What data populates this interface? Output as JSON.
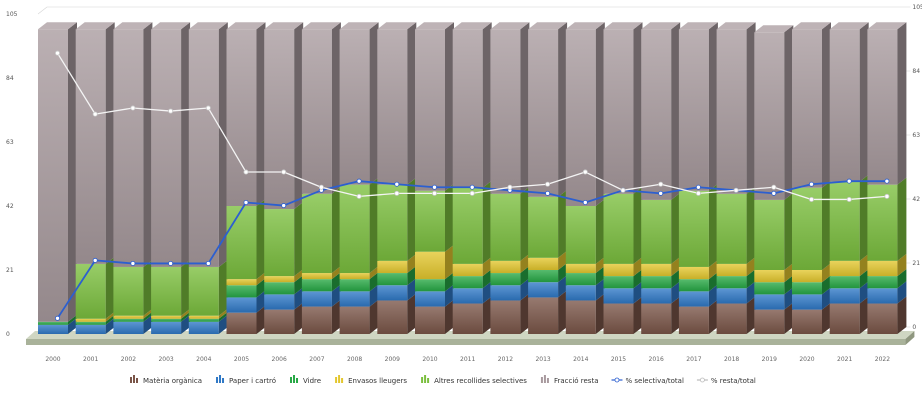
{
  "chart_data": {
    "type": "bar",
    "stacked": true,
    "three_d": true,
    "x": [
      "2000",
      "2001",
      "2002",
      "2003",
      "2004",
      "2005",
      "2006",
      "2007",
      "2008",
      "2009",
      "2010",
      "2011",
      "2012",
      "2013",
      "2014",
      "2015",
      "2016",
      "2017",
      "2018",
      "2019",
      "2020",
      "2021",
      "2022"
    ],
    "y_ticks": [
      "0",
      "21",
      "42",
      "63",
      "84",
      "105"
    ],
    "y_ticks_right": [
      "0",
      "21",
      "42",
      "63",
      "84",
      "105"
    ],
    "ylim": [
      0,
      105
    ],
    "grid": true,
    "legend_position": "bottom",
    "series": [
      {
        "name": "Matèria orgànica",
        "color": "#7a5548",
        "kind": "bar",
        "values": [
          0,
          0,
          0,
          0,
          0,
          7,
          8,
          9,
          9,
          11,
          9,
          10,
          11,
          12,
          11,
          10,
          10,
          9,
          10,
          8,
          8,
          10,
          10
        ]
      },
      {
        "name": "Paper i cartró",
        "color": "#2f78c6",
        "kind": "bar",
        "values": [
          3,
          3,
          4,
          4,
          4,
          5,
          5,
          5,
          5,
          5,
          5,
          5,
          5,
          5,
          5,
          5,
          5,
          5,
          5,
          5,
          5,
          5,
          5
        ]
      },
      {
        "name": "Vidre",
        "color": "#27a845",
        "kind": "bar",
        "values": [
          1,
          1,
          1,
          1,
          1,
          4,
          4,
          4,
          4,
          4,
          4,
          4,
          4,
          4,
          4,
          4,
          4,
          4,
          4,
          4,
          4,
          4,
          4
        ]
      },
      {
        "name": "Envasos lleugers",
        "color": "#e3c72e",
        "kind": "bar",
        "values": [
          0,
          1,
          1,
          1,
          1,
          2,
          2,
          2,
          2,
          4,
          9,
          4,
          4,
          4,
          3,
          4,
          4,
          4,
          4,
          4,
          4,
          5,
          5
        ]
      },
      {
        "name": "Altres recollides selectives",
        "color": "#7bbf3e",
        "kind": "bar",
        "values": [
          0,
          18,
          16,
          16,
          16,
          24,
          22,
          26,
          29,
          25,
          20,
          25,
          22,
          20,
          19,
          23,
          21,
          25,
          23,
          23,
          27,
          26,
          25
        ]
      },
      {
        "name": "Fracció resta",
        "color": "#a89a9e",
        "kind": "bar",
        "values": [
          96,
          77,
          78,
          78,
          78,
          58,
          59,
          54,
          51,
          51,
          53,
          52,
          54,
          55,
          58,
          54,
          56,
          53,
          54,
          55,
          52,
          50,
          51
        ]
      },
      {
        "name": "% selectiva/total",
        "color": "#2c5fd0",
        "kind": "line",
        "values": [
          4,
          23,
          22,
          22,
          22,
          42,
          41,
          46,
          49,
          48,
          47,
          47,
          46,
          45,
          42,
          46,
          45,
          47,
          46,
          45,
          48,
          49,
          49
        ]
      },
      {
        "name": "% resta/total",
        "color": "#ffffff",
        "kind": "line",
        "values": [
          91,
          71,
          73,
          72,
          73,
          52,
          52,
          47,
          44,
          45,
          45,
          45,
          47,
          48,
          52,
          46,
          48,
          45,
          46,
          47,
          43,
          43,
          44
        ]
      }
    ]
  }
}
